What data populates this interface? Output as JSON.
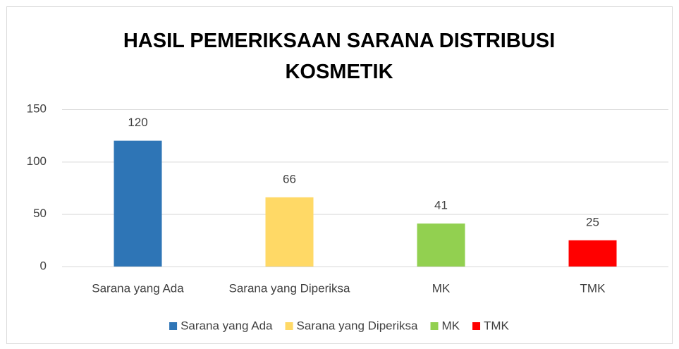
{
  "chart_data": {
    "type": "bar",
    "title": "HASIL PEMERIKSAAN SARANA DISTRIBUSI KOSMETIK",
    "categories": [
      "Sarana yang Ada",
      "Sarana yang Diperiksa",
      "MK",
      "TMK"
    ],
    "values": [
      120,
      66,
      41,
      25
    ],
    "colors": [
      "#2e75b6",
      "#ffd966",
      "#92d050",
      "#ff0000"
    ],
    "ylim": [
      0,
      150
    ],
    "yticks": [
      0,
      50,
      100,
      150
    ],
    "grid": true,
    "legend": "bottom"
  }
}
